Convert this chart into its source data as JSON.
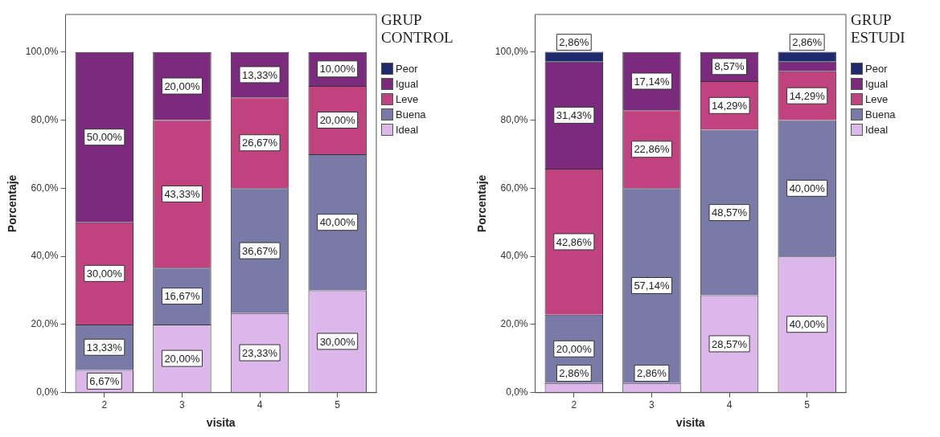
{
  "chart_data": [
    {
      "type": "bar",
      "stacked": true,
      "legend": "right",
      "legend_title": "GRUP CONTROL",
      "xlabel": "visita",
      "ylabel": "Porcentaje",
      "grid": false,
      "categories": [
        "2",
        "3",
        "4",
        "5"
      ],
      "ylim": [
        0,
        111
      ],
      "yticks": [
        {
          "value": 0,
          "label": "0,0%"
        },
        {
          "value": 20,
          "label": "20,0%"
        },
        {
          "value": 40,
          "label": "40,0%"
        },
        {
          "value": 60,
          "label": "60,0%"
        },
        {
          "value": 80,
          "label": "80,0%"
        },
        {
          "value": 100,
          "label": "100,0%"
        }
      ],
      "series": [
        {
          "name": "Ideal",
          "color": "#dcb8ea",
          "values": [
            6.67,
            20,
            23.33,
            30
          ],
          "value_labels": [
            "6,67%",
            "20,00%",
            "23,33%",
            "30,00%"
          ]
        },
        {
          "name": "Buena",
          "color": "#7a7aa8",
          "values": [
            13.33,
            16.67,
            36.67,
            40
          ],
          "value_labels": [
            "13,33%",
            "16,67%",
            "36,67%",
            "40,00%"
          ]
        },
        {
          "name": "Leve",
          "color": "#c0437f",
          "values": [
            30,
            43.33,
            26.67,
            20
          ],
          "value_labels": [
            "30,00%",
            "43,33%",
            "26,67%",
            "20,00%"
          ]
        },
        {
          "name": "Igual",
          "color": "#7b2a7e",
          "values": [
            50,
            20,
            13.33,
            10
          ],
          "value_labels": [
            "50,00%",
            "20,00%",
            "13,33%",
            "10,00%"
          ]
        },
        {
          "name": "Peor",
          "color": "#1f2a6e",
          "values": [
            null,
            null,
            null,
            null
          ]
        }
      ]
    },
    {
      "type": "bar",
      "stacked": true,
      "legend": "right",
      "legend_title": "GRUP ESTUDI",
      "xlabel": "visita",
      "ylabel": "Porcentaje",
      "grid": false,
      "categories": [
        "2",
        "3",
        "4",
        "5"
      ],
      "ylim": [
        0,
        111
      ],
      "yticks": [
        {
          "value": 0,
          "label": "0,0%"
        },
        {
          "value": 20,
          "label": "20,0%"
        },
        {
          "value": 40,
          "label": "40,0%"
        },
        {
          "value": 60,
          "label": "60,0%"
        },
        {
          "value": 80,
          "label": "80,0%"
        },
        {
          "value": 100,
          "label": "100,0%"
        }
      ],
      "series": [
        {
          "name": "Ideal",
          "color": "#dcb8ea",
          "values": [
            2.86,
            2.86,
            28.57,
            40
          ],
          "value_labels": [
            "2,86%",
            "2,86%",
            "28,57%",
            "40,00%"
          ]
        },
        {
          "name": "Buena",
          "color": "#7a7aa8",
          "values": [
            20,
            57.14,
            48.57,
            40
          ],
          "value_labels": [
            "20,00%",
            "57,14%",
            "48,57%",
            "40,00%"
          ]
        },
        {
          "name": "Leve",
          "color": "#c0437f",
          "values": [
            42.86,
            22.86,
            14.29,
            14.29
          ],
          "value_labels": [
            "42,86%",
            "22,86%",
            "14,29%",
            "14,29%"
          ]
        },
        {
          "name": "Igual",
          "color": "#7b2a7e",
          "values": [
            31.43,
            17.14,
            8.57,
            2.86
          ],
          "value_labels": [
            "31,43%",
            "17,14%",
            "8,57%",
            null
          ]
        },
        {
          "name": "Peor",
          "color": "#1f2a6e",
          "values": [
            2.86,
            null,
            null,
            2.86
          ],
          "value_labels": [
            "2,86%",
            null,
            null,
            "2,86%"
          ]
        }
      ]
    }
  ]
}
